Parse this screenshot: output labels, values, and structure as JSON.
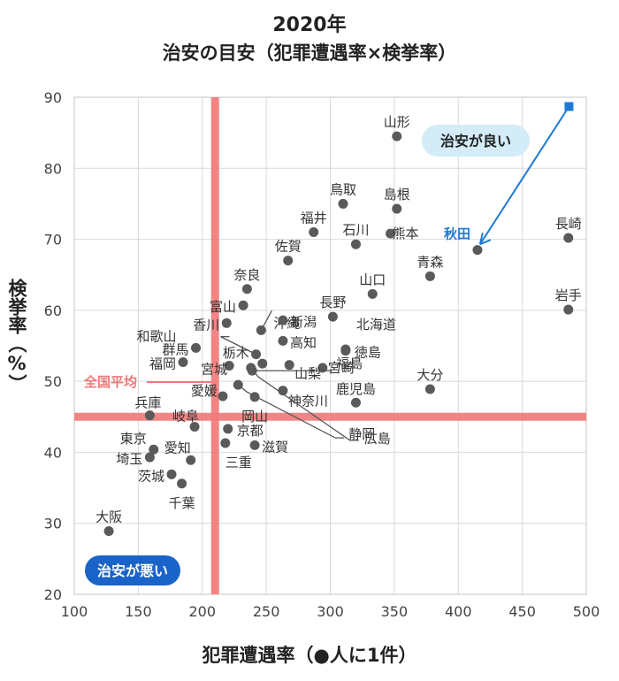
{
  "chart_data": {
    "type": "scatter",
    "title": "2020年",
    "subtitle": "治安の目安（犯罪遭遇率×検挙率）",
    "xlabel": "犯罪遭遇率（●人に1件）",
    "ylabel": "検挙率（%）",
    "xlim": [
      100,
      500
    ],
    "ylim": [
      20,
      90
    ],
    "xticks": [
      100,
      150,
      200,
      250,
      300,
      350,
      400,
      450,
      500
    ],
    "yticks": [
      20,
      30,
      40,
      50,
      60,
      70,
      80,
      90
    ],
    "grid": true,
    "national_average": {
      "label": "全国平均",
      "x": 210,
      "y": 45
    },
    "annotations": {
      "good": "治安が良い",
      "bad": "治安が悪い"
    },
    "points": [
      {
        "name": "山形",
        "x": 352,
        "y": 84.5
      },
      {
        "name": "鳥取",
        "x": 310,
        "y": 75.0
      },
      {
        "name": "島根",
        "x": 352,
        "y": 74.3
      },
      {
        "name": "福井",
        "x": 287,
        "y": 71.0
      },
      {
        "name": "石川",
        "x": 320,
        "y": 69.3
      },
      {
        "name": "熊本",
        "x": 347,
        "y": 70.8
      },
      {
        "name": "佐賀",
        "x": 267,
        "y": 67.0
      },
      {
        "name": "長崎",
        "x": 486,
        "y": 70.2
      },
      {
        "name": "秋田",
        "x": 415,
        "y": 68.5
      },
      {
        "name": "青森",
        "x": 378,
        "y": 64.8
      },
      {
        "name": "奈良",
        "x": 235,
        "y": 63.0
      },
      {
        "name": "山口",
        "x": 333,
        "y": 62.3
      },
      {
        "name": "富山",
        "x": 232,
        "y": 60.7
      },
      {
        "name": "沖縄",
        "x": 246,
        "y": 57.2
      },
      {
        "name": "岩手",
        "x": 486,
        "y": 60.1
      },
      {
        "name": "長野",
        "x": 302,
        "y": 59.1
      },
      {
        "name": "香川",
        "x": 219,
        "y": 58.2
      },
      {
        "name": "新潟",
        "x": 263,
        "y": 58.6
      },
      {
        "name": "北海道",
        "x": 312,
        "y": 54.5
      },
      {
        "name": "高知",
        "x": 263,
        "y": 55.7
      },
      {
        "name": "和歌山",
        "x": 242,
        "y": 53.8
      },
      {
        "name": "群馬",
        "x": 195,
        "y": 54.7
      },
      {
        "name": "徳島",
        "x": 312,
        "y": 54.3
      },
      {
        "name": "栃木",
        "x": 247,
        "y": 52.5
      },
      {
        "name": "福岡",
        "x": 185,
        "y": 52.7
      },
      {
        "name": "宮崎",
        "x": 294,
        "y": 51.9
      },
      {
        "name": "宮城",
        "x": 221,
        "y": 52.2
      },
      {
        "name": "山梨",
        "x": 268,
        "y": 52.3
      },
      {
        "name": "愛媛",
        "x": 216,
        "y": 47.9
      },
      {
        "name": "神奈川",
        "x": 263,
        "y": 48.7
      },
      {
        "name": "大分",
        "x": 378,
        "y": 48.9
      },
      {
        "name": "兵庫",
        "x": 159,
        "y": 45.2
      },
      {
        "name": "岐阜",
        "x": 194,
        "y": 43.6
      },
      {
        "name": "岡山",
        "x": 241,
        "y": 47.8
      },
      {
        "name": "鹿児島",
        "x": 320,
        "y": 47.0
      },
      {
        "name": "福島",
        "x": 239,
        "y": 51.5
      },
      {
        "name": "東京",
        "x": 162,
        "y": 40.4
      },
      {
        "name": "京都",
        "x": 220,
        "y": 43.3
      },
      {
        "name": "愛知",
        "x": 191,
        "y": 38.9
      },
      {
        "name": "埼玉",
        "x": 159,
        "y": 39.3
      },
      {
        "name": "滋賀",
        "x": 241,
        "y": 41.0
      },
      {
        "name": "静岡",
        "x": 228,
        "y": 49.5
      },
      {
        "name": "三重",
        "x": 218,
        "y": 41.3
      },
      {
        "name": "広島",
        "x": 238,
        "y": 51.9
      },
      {
        "name": "茨城",
        "x": 176,
        "y": 36.9
      },
      {
        "name": "千葉",
        "x": 184,
        "y": 35.6
      },
      {
        "name": "大阪",
        "x": 127,
        "y": 28.9
      }
    ]
  },
  "colors": {
    "grid": "#d9d9d9",
    "point": "#5a5a5a",
    "average_line": "#f07878",
    "accent_blue": "#1f7ad6",
    "good_bg": "#d3ecf8",
    "bad_bg": "#1a63c8"
  }
}
